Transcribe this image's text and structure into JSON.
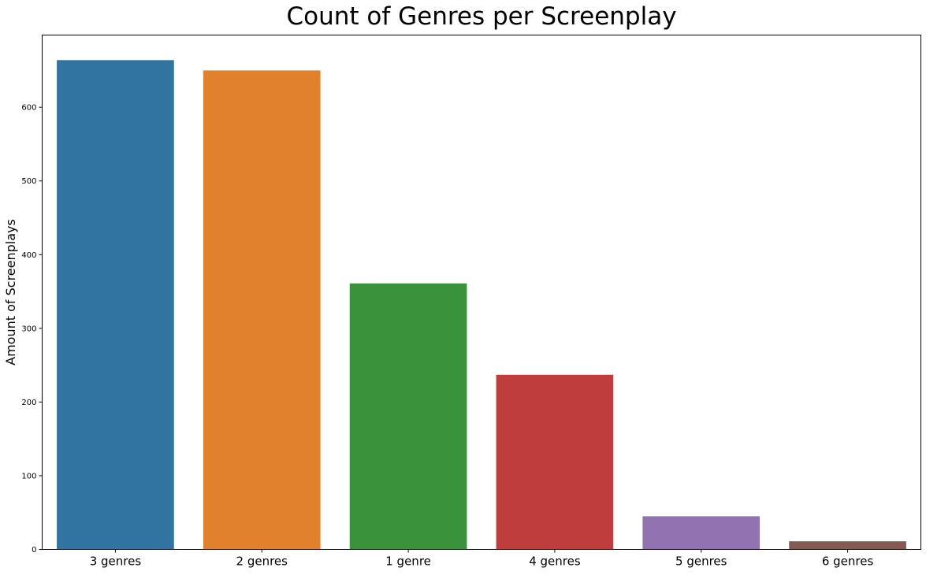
{
  "chart_data": {
    "type": "bar",
    "title": "Count of Genres per Screenplay",
    "xlabel": "",
    "ylabel": "Amount of Screenplays",
    "categories": [
      "3 genres",
      "2 genres",
      "1 genre",
      "4 genres",
      "5 genres",
      "6 genres"
    ],
    "values": [
      664,
      650,
      361,
      237,
      45,
      11
    ],
    "colors": [
      "#3274a1",
      "#e1812c",
      "#3a923a",
      "#c03d3e",
      "#9372b2",
      "#845b53"
    ],
    "ylim": [
      0,
      698
    ],
    "yticks": [
      0,
      100,
      200,
      300,
      400,
      500,
      600
    ],
    "grid": false,
    "legend": "none"
  }
}
